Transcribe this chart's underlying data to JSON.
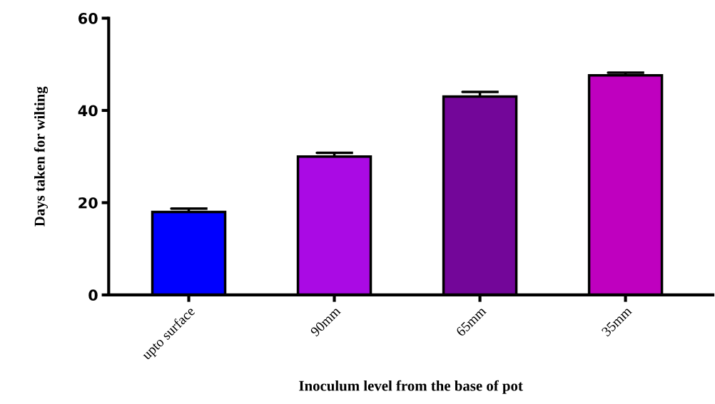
{
  "chart_data": {
    "type": "bar",
    "xlabel": "Inoculum level from the base of pot",
    "ylabel": "Days taken for wilting",
    "categories": [
      "upto surface",
      "90mm",
      "65mm",
      "35mm"
    ],
    "values": [
      18,
      30,
      43,
      47.6
    ],
    "errors": [
      [
        18,
        18.7
      ],
      [
        30,
        30.8
      ],
      [
        43,
        44
      ],
      [
        47.6,
        48.2
      ]
    ],
    "colors": [
      "#0000ff",
      "#aa0ae4",
      "#730699",
      "#bf00bf"
    ],
    "ylim": [
      0,
      60
    ],
    "yticks": [
      0,
      20,
      40,
      60
    ],
    "grid": false,
    "legend": false
  }
}
